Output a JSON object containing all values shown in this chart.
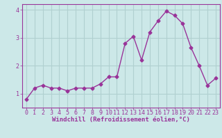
{
  "x": [
    0,
    1,
    2,
    3,
    4,
    5,
    6,
    7,
    8,
    9,
    10,
    11,
    12,
    13,
    14,
    15,
    16,
    17,
    18,
    19,
    20,
    21,
    22,
    23
  ],
  "y": [
    0.8,
    1.2,
    1.3,
    1.2,
    1.2,
    1.1,
    1.2,
    1.2,
    1.2,
    1.35,
    1.6,
    1.6,
    2.8,
    3.05,
    2.2,
    3.2,
    3.6,
    3.95,
    3.8,
    3.5,
    2.65,
    2.0,
    1.3,
    1.55
  ],
  "line_color": "#993399",
  "marker": "D",
  "marker_size": 2.5,
  "background_color": "#cce8e8",
  "grid_color": "#b0d0d0",
  "xlabel": "Windchill (Refroidissement éolien,°C)",
  "ylabel": "",
  "ylim": [
    0.5,
    4.2
  ],
  "xlim": [
    -0.5,
    23.5
  ],
  "yticks": [
    1,
    2,
    3,
    4
  ],
  "xticks": [
    0,
    1,
    2,
    3,
    4,
    5,
    6,
    7,
    8,
    9,
    10,
    11,
    12,
    13,
    14,
    15,
    16,
    17,
    18,
    19,
    20,
    21,
    22,
    23
  ],
  "tick_color": "#993399",
  "label_color": "#993399",
  "label_fontsize": 6.5,
  "tick_fontsize": 6,
  "line_width": 1.0
}
